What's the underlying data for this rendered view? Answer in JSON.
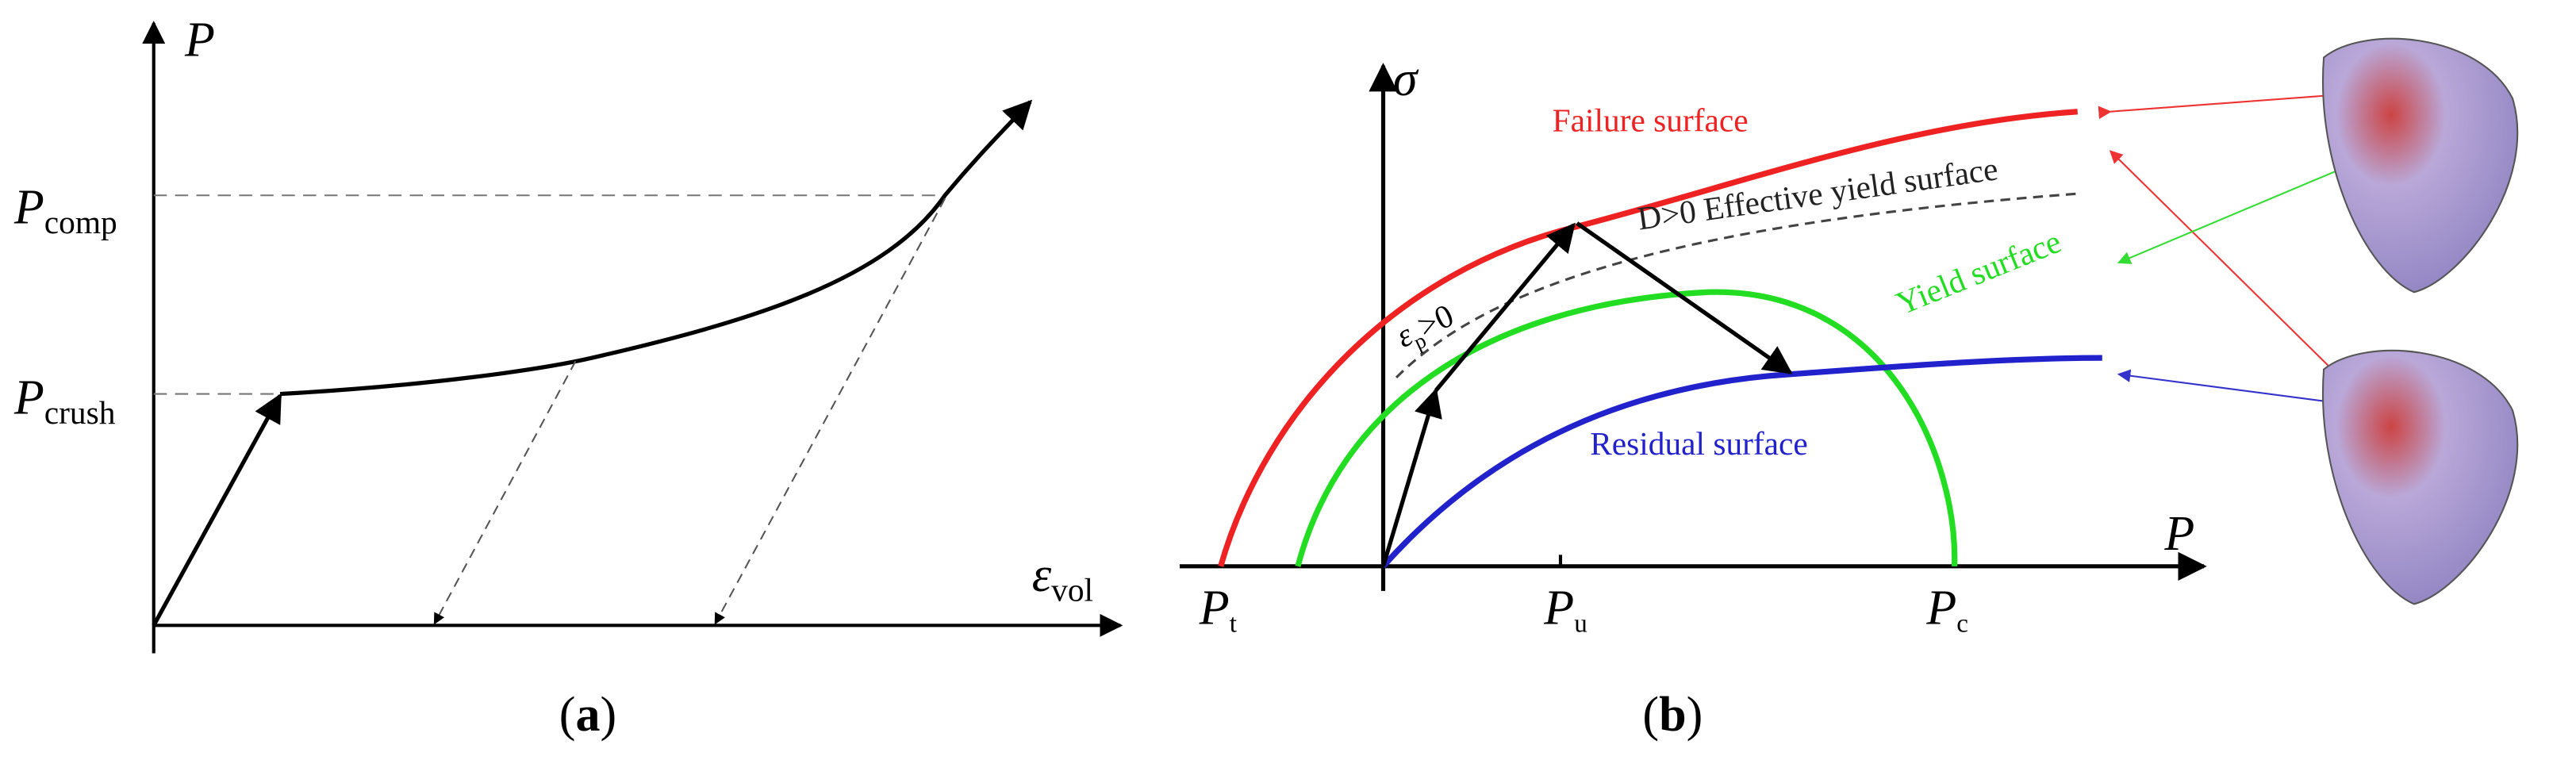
{
  "panel_a": {
    "y_axis_label": "P",
    "p_comp": {
      "symbol": "P",
      "subscript": "comp"
    },
    "p_crush": {
      "symbol": "P",
      "subscript": "crush"
    },
    "x_axis_label": {
      "symbol": "ε",
      "subscript": "vol"
    },
    "caption": {
      "open": "(",
      "letter": "a",
      "close": ")"
    }
  },
  "panel_b": {
    "y_axis_label": "σ",
    "x_axis_label": "P",
    "failure_surface": "Failure surface",
    "effective_yield_surface": "D>0 Effective yield surface",
    "yield_surface": "Yield surface",
    "residual_surface": "Residual surface",
    "plastic_strain": {
      "symbol": "ε",
      "subscript": "p",
      "suffix": ">0"
    },
    "p_t": {
      "symbol": "P",
      "subscript": "t"
    },
    "p_u": {
      "symbol": "P",
      "subscript": "u"
    },
    "p_c": {
      "symbol": "P",
      "subscript": "c"
    },
    "caption": {
      "open": "(",
      "letter": "b",
      "close": ")"
    }
  }
}
